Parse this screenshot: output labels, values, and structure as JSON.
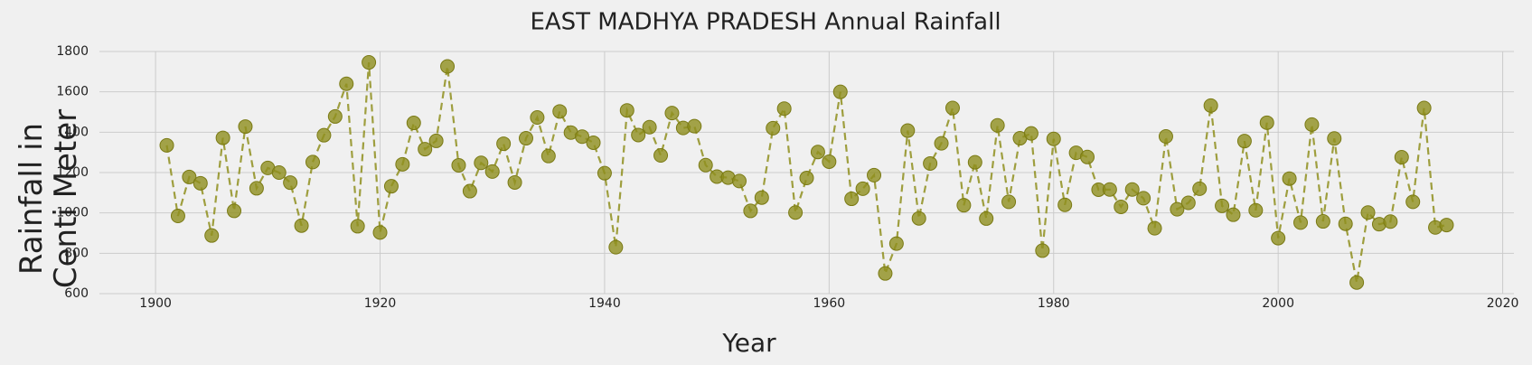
{
  "chart_data": {
    "type": "line",
    "title": "EAST MADHYA PRADESH Annual Rainfall",
    "xlabel": "Year",
    "ylabel_lines": [
      "Rainfall in",
      "Centi Meter"
    ],
    "xlim": [
      1895,
      2021
    ],
    "ylim": [
      600,
      1800
    ],
    "xticks": [
      1900,
      1920,
      1940,
      1960,
      1980,
      2000,
      2020
    ],
    "yticks": [
      600,
      800,
      1000,
      1200,
      1400,
      1600,
      1800
    ],
    "grid": true,
    "line_style": "dashed",
    "marker": "circle",
    "color": "#8f8f1e",
    "series": [
      {
        "x": [
          1901,
          1902,
          1903,
          1904,
          1905,
          1906,
          1907,
          1908,
          1909,
          1910,
          1911,
          1912,
          1913,
          1914,
          1915,
          1916,
          1917,
          1918,
          1919,
          1920,
          1921,
          1922,
          1923,
          1924,
          1925,
          1926,
          1927,
          1928,
          1929,
          1930,
          1931,
          1932,
          1933,
          1934,
          1935,
          1936,
          1937,
          1938,
          1939,
          1940,
          1941,
          1942,
          1943,
          1944,
          1945,
          1946,
          1947,
          1948,
          1949,
          1950,
          1951,
          1952,
          1953,
          1954,
          1955,
          1956,
          1957,
          1958,
          1959,
          1960,
          1961,
          1962,
          1963,
          1964,
          1965,
          1966,
          1967,
          1968,
          1969,
          1970,
          1971,
          1972,
          1973,
          1974,
          1975,
          1976,
          1977,
          1978,
          1979,
          1980,
          1981,
          1982,
          1983,
          1984,
          1985,
          1986,
          1987,
          1988,
          1989,
          1990,
          1991,
          1992,
          1993,
          1994,
          1995,
          1996,
          1997,
          1998,
          1999,
          2000,
          2001,
          2002,
          2003,
          2004,
          2005,
          2006,
          2007,
          2008,
          2009,
          2010,
          2011,
          2012,
          2013,
          2014,
          2015
        ],
        "y": [
          1335,
          985,
          1178,
          1147,
          888,
          1372,
          1010,
          1428,
          1122,
          1223,
          1200,
          1150,
          937,
          1252,
          1385,
          1478,
          1640,
          934,
          1746,
          903,
          1132,
          1241,
          1446,
          1316,
          1357,
          1726,
          1236,
          1108,
          1248,
          1205,
          1343,
          1151,
          1370,
          1473,
          1282,
          1503,
          1398,
          1378,
          1348,
          1197,
          830,
          1508,
          1386,
          1425,
          1285,
          1495,
          1421,
          1430,
          1237,
          1180,
          1175,
          1158,
          1010,
          1076,
          1420,
          1517,
          1002,
          1173,
          1302,
          1254,
          1600,
          1070,
          1120,
          1187,
          700,
          848,
          1408,
          973,
          1245,
          1345,
          1520,
          1038,
          1251,
          972,
          1434,
          1055,
          1370,
          1394,
          813,
          1367,
          1040,
          1298,
          1277,
          1115,
          1116,
          1030,
          1116,
          1073,
          924,
          1379,
          1018,
          1050,
          1120,
          1532,
          1035,
          991,
          1356,
          1013,
          1447,
          875,
          1170,
          952,
          1438,
          958,
          1369,
          946,
          655,
          1002,
          944,
          957,
          1276,
          1055,
          1520,
          928,
          940
        ]
      }
    ]
  }
}
